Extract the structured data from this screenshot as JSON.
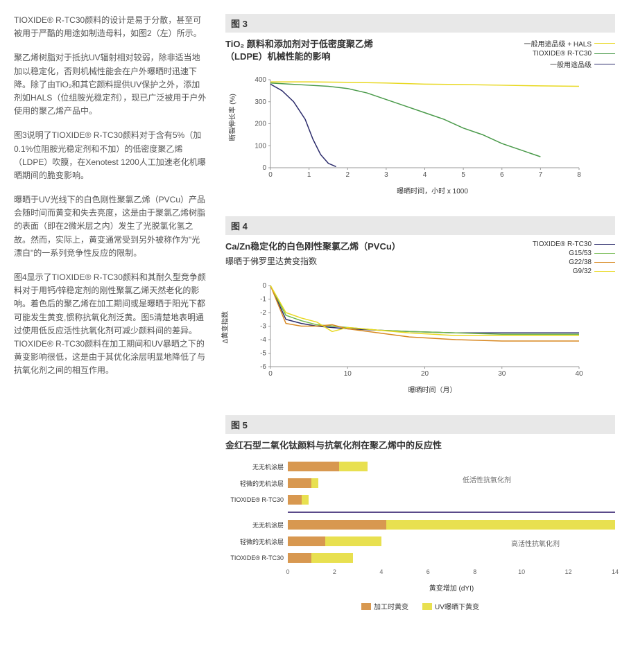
{
  "left": {
    "p1": "TIOXIDE® R-TC30颜料的设计是易于分散，甚至可被用于严酷的用途如制造母料，如图2（左）所示。",
    "p2": "聚乙烯树脂对于抵抗UV辐射相对较弱，除非适当地加以稳定化，否则机械性能会在户外曝晒时迅速下降。除了由TiO₂和其它颜料提供UV保护之外，添加剂如HALS（位组胺光稳定剂），现已广泛被用于户外使用的聚乙烯产品中。",
    "p3": "图3说明了TIOXIDE® R-TC30颜料对于含有5%（加0.1%位阻胺光稳定剂和不加）的低密度聚乙烯（LDPE）吹膜，在Xenotest 1200人工加速老化机曝晒期间的脆变影响。",
    "p4": "曝晒于UV光线下的白色刚性聚氯乙烯（PVCu）产品会随时间而黄变和失去亮度，这是由于聚氯乙烯树脂的表面（即在2微米层之内）发生了光脱氯化氢之故。然而，实际上，黄变通常受到另外被称作为\"光漂白\"的一系列竞争性反应的限制。",
    "p5": "图4显示了TIOXIDE® R-TC30颜料和其耐久型竞争颜料对于用钙/锌稳定剂的刚性聚氯乙烯天然老化的影响。着色后的聚乙烯在加工期间或是曝晒于阳光下都可能发生黄变,惯称抗氧化剂泛黄。图5清楚地表明通过使用低反应活性抗氧化剂可减少颜料间的差异。TIOXIDE® R-TC30颜料在加工期间和UV暴晒之下的黄变影响很低，这是由于其优化涂层明显地降低了与抗氧化剂之间的相互作用。"
  },
  "fig3": {
    "label": "图 3",
    "title": "TiO₂ 颜料和添加剂对于低密度聚乙烯（LDPE）机械性能的影响",
    "ylabel": "断裂伸长率 (%)",
    "xlabel": "曝晒时间，小时 x 1000",
    "xlim": [
      0,
      8
    ],
    "ylim": [
      0,
      400
    ],
    "xticks": [
      0,
      1,
      2,
      3,
      4,
      5,
      6,
      7,
      8
    ],
    "yticks": [
      0,
      100,
      200,
      300,
      400
    ],
    "legend": [
      {
        "label": "一般用途品级 + HALS",
        "color": "#e8d820"
      },
      {
        "label": "TIOXIDE® R-TC30",
        "color": "#4a9a4a"
      },
      {
        "label": "一般用途品级",
        "color": "#2a2a6a"
      }
    ],
    "series": {
      "yellow": {
        "color": "#e8d820",
        "pts": [
          [
            0,
            390
          ],
          [
            1,
            390
          ],
          [
            2,
            388
          ],
          [
            3,
            385
          ],
          [
            4,
            380
          ],
          [
            5,
            378
          ],
          [
            6,
            375
          ],
          [
            7,
            372
          ],
          [
            8,
            370
          ]
        ]
      },
      "green": {
        "color": "#4a9a4a",
        "pts": [
          [
            0,
            385
          ],
          [
            0.5,
            380
          ],
          [
            1,
            375
          ],
          [
            1.5,
            370
          ],
          [
            2,
            360
          ],
          [
            2.5,
            340
          ],
          [
            3,
            310
          ],
          [
            3.5,
            280
          ],
          [
            4,
            250
          ],
          [
            4.5,
            220
          ],
          [
            5,
            180
          ],
          [
            5.5,
            150
          ],
          [
            6,
            110
          ],
          [
            6.5,
            80
          ],
          [
            7,
            50
          ]
        ]
      },
      "navy": {
        "color": "#2a2a6a",
        "pts": [
          [
            0,
            380
          ],
          [
            0.3,
            350
          ],
          [
            0.6,
            300
          ],
          [
            0.9,
            220
          ],
          [
            1.1,
            130
          ],
          [
            1.3,
            60
          ],
          [
            1.5,
            20
          ],
          [
            1.7,
            5
          ]
        ]
      }
    }
  },
  "fig4": {
    "label": "图 4",
    "title": "Ca/Zn稳定化的白色刚性聚氯乙烯（PVCu）",
    "subtitle": "曝晒于佛罗里达黄变指数",
    "ylabel": "Δ黄变指数",
    "xlabel": "曝晒时间（月）",
    "xlim": [
      0,
      40
    ],
    "ylim": [
      -6,
      0
    ],
    "xticks": [
      0,
      10,
      20,
      30,
      40
    ],
    "yticks": [
      -6,
      -5,
      -4,
      -3,
      -2,
      -1,
      0
    ],
    "legend": [
      {
        "label": "TIOXIDE® R-TC30",
        "color": "#2a2a6a"
      },
      {
        "label": "G15/53",
        "color": "#6fb84a"
      },
      {
        "label": "G22/38",
        "color": "#d88820"
      },
      {
        "label": "G9/32",
        "color": "#e8d820"
      }
    ],
    "series": {
      "navy": {
        "color": "#2a2a6a",
        "pts": [
          [
            0,
            0
          ],
          [
            2,
            -2.5
          ],
          [
            4,
            -2.8
          ],
          [
            6,
            -3.0
          ],
          [
            8,
            -3.1
          ],
          [
            10,
            -3.2
          ],
          [
            14,
            -3.3
          ],
          [
            18,
            -3.4
          ],
          [
            24,
            -3.5
          ],
          [
            30,
            -3.5
          ],
          [
            36,
            -3.5
          ],
          [
            40,
            -3.5
          ]
        ]
      },
      "green": {
        "color": "#6fb84a",
        "pts": [
          [
            0,
            0
          ],
          [
            2,
            -2.2
          ],
          [
            4,
            -2.6
          ],
          [
            6,
            -2.9
          ],
          [
            8,
            -3.0
          ],
          [
            10,
            -3.1
          ],
          [
            14,
            -3.3
          ],
          [
            18,
            -3.4
          ],
          [
            24,
            -3.5
          ],
          [
            30,
            -3.6
          ],
          [
            36,
            -3.6
          ],
          [
            40,
            -3.6
          ]
        ]
      },
      "orange": {
        "color": "#d88820",
        "pts": [
          [
            0,
            0
          ],
          [
            2,
            -2.8
          ],
          [
            4,
            -3.0
          ],
          [
            6,
            -3.0
          ],
          [
            8,
            -2.9
          ],
          [
            10,
            -3.2
          ],
          [
            14,
            -3.5
          ],
          [
            18,
            -3.8
          ],
          [
            24,
            -4.0
          ],
          [
            30,
            -4.1
          ],
          [
            36,
            -4.1
          ],
          [
            40,
            -4.1
          ]
        ]
      },
      "yellow": {
        "color": "#e8d820",
        "pts": [
          [
            0,
            0
          ],
          [
            2,
            -2.0
          ],
          [
            4,
            -2.4
          ],
          [
            6,
            -2.7
          ],
          [
            8,
            -3.4
          ],
          [
            10,
            -3.1
          ],
          [
            14,
            -3.3
          ],
          [
            18,
            -3.5
          ],
          [
            24,
            -3.7
          ],
          [
            30,
            -3.7
          ],
          [
            36,
            -3.7
          ],
          [
            40,
            -3.7
          ]
        ]
      }
    }
  },
  "fig5": {
    "label": "图 5",
    "title": "金红石型二氧化钛颜料与抗氧化剂在聚乙烯中的反应性",
    "xlabel": "黄变增加 (dYI)",
    "xlim": [
      0,
      14
    ],
    "xticks": [
      0,
      2,
      4,
      6,
      8,
      10,
      12,
      14
    ],
    "colors": {
      "proc": "#d89850",
      "uv": "#e8e050"
    },
    "groups": [
      {
        "annotation": "低活性抗氧化剂",
        "rows": [
          {
            "label": "无无机涂层",
            "proc": 2.2,
            "uv": 3.4
          },
          {
            "label": "轻微的无机涂层",
            "proc": 1.0,
            "uv": 1.3
          },
          {
            "label": "TIOXIDE® R-TC30",
            "proc": 0.6,
            "uv": 0.9
          }
        ]
      },
      {
        "annotation": "高活性抗氧化剂",
        "rows": [
          {
            "label": "无无机涂层",
            "proc": 4.2,
            "uv": 14.0
          },
          {
            "label": "轻微的无机涂层",
            "proc": 1.6,
            "uv": 4.0
          },
          {
            "label": "TIOXIDE® R-TC30",
            "proc": 1.0,
            "uv": 2.8
          }
        ]
      }
    ],
    "legend": [
      {
        "label": "加工时黄变",
        "color": "#d89850"
      },
      {
        "label": "UV曝晒下黄变",
        "color": "#e8e050"
      }
    ]
  }
}
